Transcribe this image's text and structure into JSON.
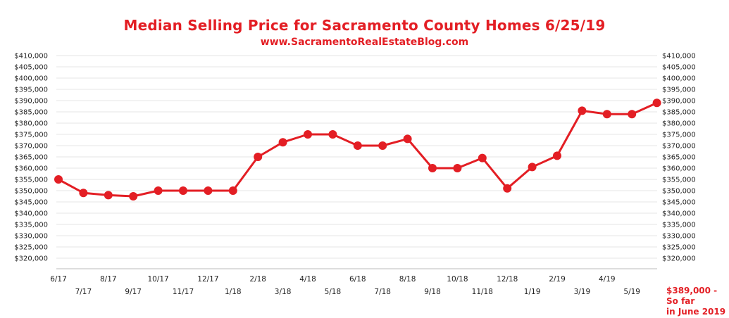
{
  "chart_data": {
    "type": "line",
    "title": "Median Selling Price for Sacramento County Homes 6/25/19",
    "subtitle": "www.SacramentoRealEstateBlog.com",
    "categories": [
      "6/17",
      "7/17",
      "8/17",
      "9/17",
      "10/17",
      "11/17",
      "12/17",
      "1/18",
      "2/18",
      "3/18",
      "4/18",
      "5/18",
      "6/18",
      "7/18",
      "8/18",
      "9/18",
      "10/18",
      "11/18",
      "12/18",
      "1/19",
      "2/19",
      "3/19",
      "4/19",
      "5/19",
      "6/19"
    ],
    "x_tick_labels": [
      "6/17",
      "7/17",
      "8/17",
      "9/17",
      "10/17",
      "11/17",
      "12/17",
      "1/18",
      "2/18",
      "3/18",
      "4/18",
      "5/18",
      "6/18",
      "7/18",
      "8/18",
      "9/18",
      "10/18",
      "11/18",
      "12/18",
      "1/19",
      "2/19",
      "3/19",
      "4/19",
      "5/19"
    ],
    "values": [
      355000,
      349000,
      348000,
      347500,
      350000,
      350000,
      350000,
      350000,
      365000,
      371500,
      375000,
      375000,
      370000,
      370000,
      373000,
      360000,
      360000,
      364500,
      351000,
      360500,
      365500,
      385500,
      384000,
      384000,
      389000
    ],
    "ylim": [
      320000,
      410000
    ],
    "yticks": [
      "$320,000",
      "$325,000",
      "$330,000",
      "$335,000",
      "$340,000",
      "$345,000",
      "$350,000",
      "$355,000",
      "$360,000",
      "$365,000",
      "$370,000",
      "$375,000",
      "$380,000",
      "$385,000",
      "$390,000",
      "$395,000",
      "$400,000",
      "$405,000",
      "$410,000"
    ],
    "ytick_values": [
      320000,
      325000,
      330000,
      335000,
      340000,
      345000,
      350000,
      355000,
      360000,
      365000,
      370000,
      375000,
      380000,
      385000,
      390000,
      395000,
      400000,
      405000,
      410000
    ],
    "annotation": "$389,000 - So far\nin June 2019",
    "grid": true,
    "line_color": "#e31e24",
    "title_color": "#e31e24"
  }
}
